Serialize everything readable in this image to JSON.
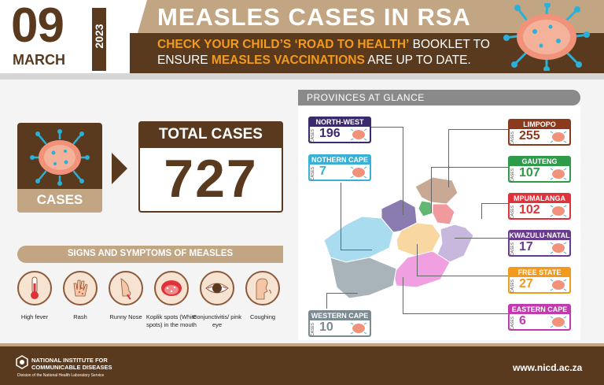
{
  "header": {
    "day": "09",
    "month": "MARCH",
    "year": "2023",
    "title": "MEASLES CASES IN RSA",
    "subtitle": {
      "part1": "CHECK YOUR CHILD’S ‘ROAD TO HEALTH’",
      "part2": " BOOKLET TO ENSURE ",
      "part3": "MEASLES VACCINATIONS",
      "part4": " ARE UP TO DATE."
    }
  },
  "cases": {
    "label": "CASES",
    "total_label": "TOTAL CASES",
    "total_value": "727"
  },
  "symptoms": {
    "title": "SIGNS AND SYMPTOMS OF MEASLES",
    "items": [
      {
        "label": "High fever",
        "icon": "thermometer-icon"
      },
      {
        "label": "Rash",
        "icon": "hand-rash-icon"
      },
      {
        "label": "Runny Nose",
        "icon": "nose-icon"
      },
      {
        "label": "Koplik spots (White spots) in the mouth",
        "icon": "mouth-icon"
      },
      {
        "label": "Conjunctivitis/ pink eye",
        "icon": "eye-icon"
      },
      {
        "label": "Coughing",
        "icon": "cough-icon"
      }
    ]
  },
  "provinces": {
    "title": "PROVINCES AT GLANCE",
    "cases_word": "CASES",
    "items": [
      {
        "name": "NORTH-WEST",
        "value": "196",
        "color": "#3b2a6e"
      },
      {
        "name": "NOTHERN CAPE",
        "value": "7",
        "color": "#3bb0d6"
      },
      {
        "name": "WESTERN CAPE",
        "value": "10",
        "color": "#7c8a92"
      },
      {
        "name": "LIMPOPO",
        "value": "255",
        "color": "#8b3a1e"
      },
      {
        "name": "GAUTENG",
        "value": "107",
        "color": "#2f9a4a"
      },
      {
        "name": "MPUMALANGA",
        "value": "102",
        "color": "#e0323a"
      },
      {
        "name": "KWAZULU-NATAL",
        "value": "17",
        "color": "#6a3a8e"
      },
      {
        "name": "FREE STATE",
        "value": "27",
        "color": "#f29a1e"
      },
      {
        "name": "EASTERN CAPE",
        "value": "6",
        "color": "#c23ab0"
      }
    ]
  },
  "footer": {
    "org_line1": "NATIONAL INSTITUTE FOR",
    "org_line2": "COMMUNICABLE DISEASES",
    "org_sub": "Division of the National Health Laboratory Service",
    "website": "www.nicd.ac.za"
  },
  "colors": {
    "brown": "#5a3a1e",
    "tan": "#c2a582",
    "orange": "#f29a1e"
  }
}
